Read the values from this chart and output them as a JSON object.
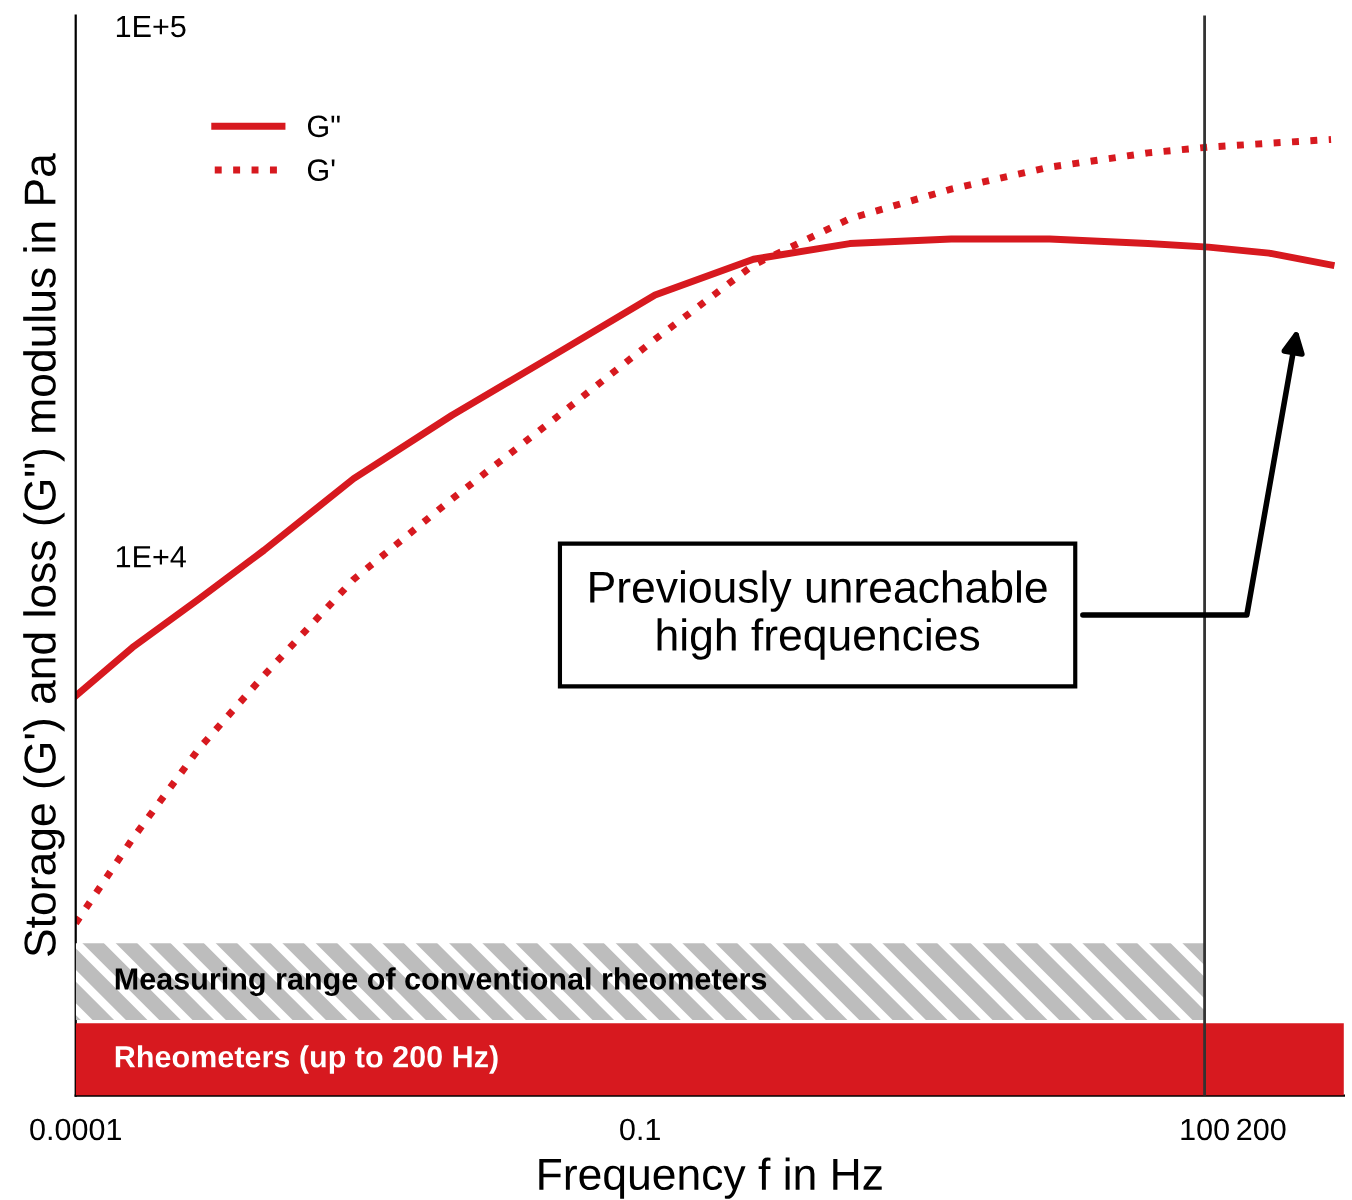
{
  "chart_data": {
    "type": "line",
    "xlabel": "Frequency f in Hz",
    "ylabel": "Storage (G') and loss (G\") modulus in Pa",
    "log": "xy",
    "x": [
      0.0001,
      0.0002,
      0.00045,
      0.001,
      0.003,
      0.01,
      0.035,
      0.12,
      0.4,
      1.3,
      4.5,
      15,
      50,
      105,
      220,
      470
    ],
    "series": [
      {
        "name": "G\"",
        "color": "#d7191f",
        "line_style": "solid",
        "values": [
          5530,
          6820,
          8410,
          10400,
          14200,
          18700,
          24300,
          31500,
          36800,
          39400,
          40200,
          40200,
          39400,
          38800,
          37800,
          35900
        ]
      },
      {
        "name": "G'",
        "color": "#d7191f",
        "line_style": "dotted",
        "values": [
          2060,
          2970,
          4390,
          6040,
          9170,
          13000,
          18400,
          26000,
          35900,
          43900,
          49900,
          54900,
          58400,
          59900,
          60900,
          61900
        ]
      }
    ],
    "xlim": [
      0.0001,
      550
    ],
    "ylim": [
      975,
      106000
    ],
    "xticks": [
      {
        "value": 0.0001,
        "label": "0.0001"
      },
      {
        "value": 0.1,
        "label": "0.1"
      },
      {
        "value": 100,
        "label": "100"
      },
      {
        "value": 200,
        "label": "200"
      }
    ],
    "yticks": [
      {
        "value": 10000,
        "label": "1E+4"
      },
      {
        "value": 100000,
        "label": "1E+5"
      }
    ],
    "ref_lines": [
      {
        "axis": "x",
        "value": 100,
        "color": "#333333"
      }
    ],
    "bands": [
      {
        "axis": "x",
        "from": 0.0001,
        "to": 100,
        "label": "Measuring range of conventional rheometers",
        "color": "#bdbdbd"
      },
      {
        "axis": "x",
        "from": 0.0001,
        "to": 550,
        "label": "Rheometers (up to 200 Hz)",
        "color": "#d7191f"
      }
    ],
    "annotations": [
      "Previously unreachable\nhigh frequencies"
    ],
    "legend": "top left",
    "grid": false
  }
}
